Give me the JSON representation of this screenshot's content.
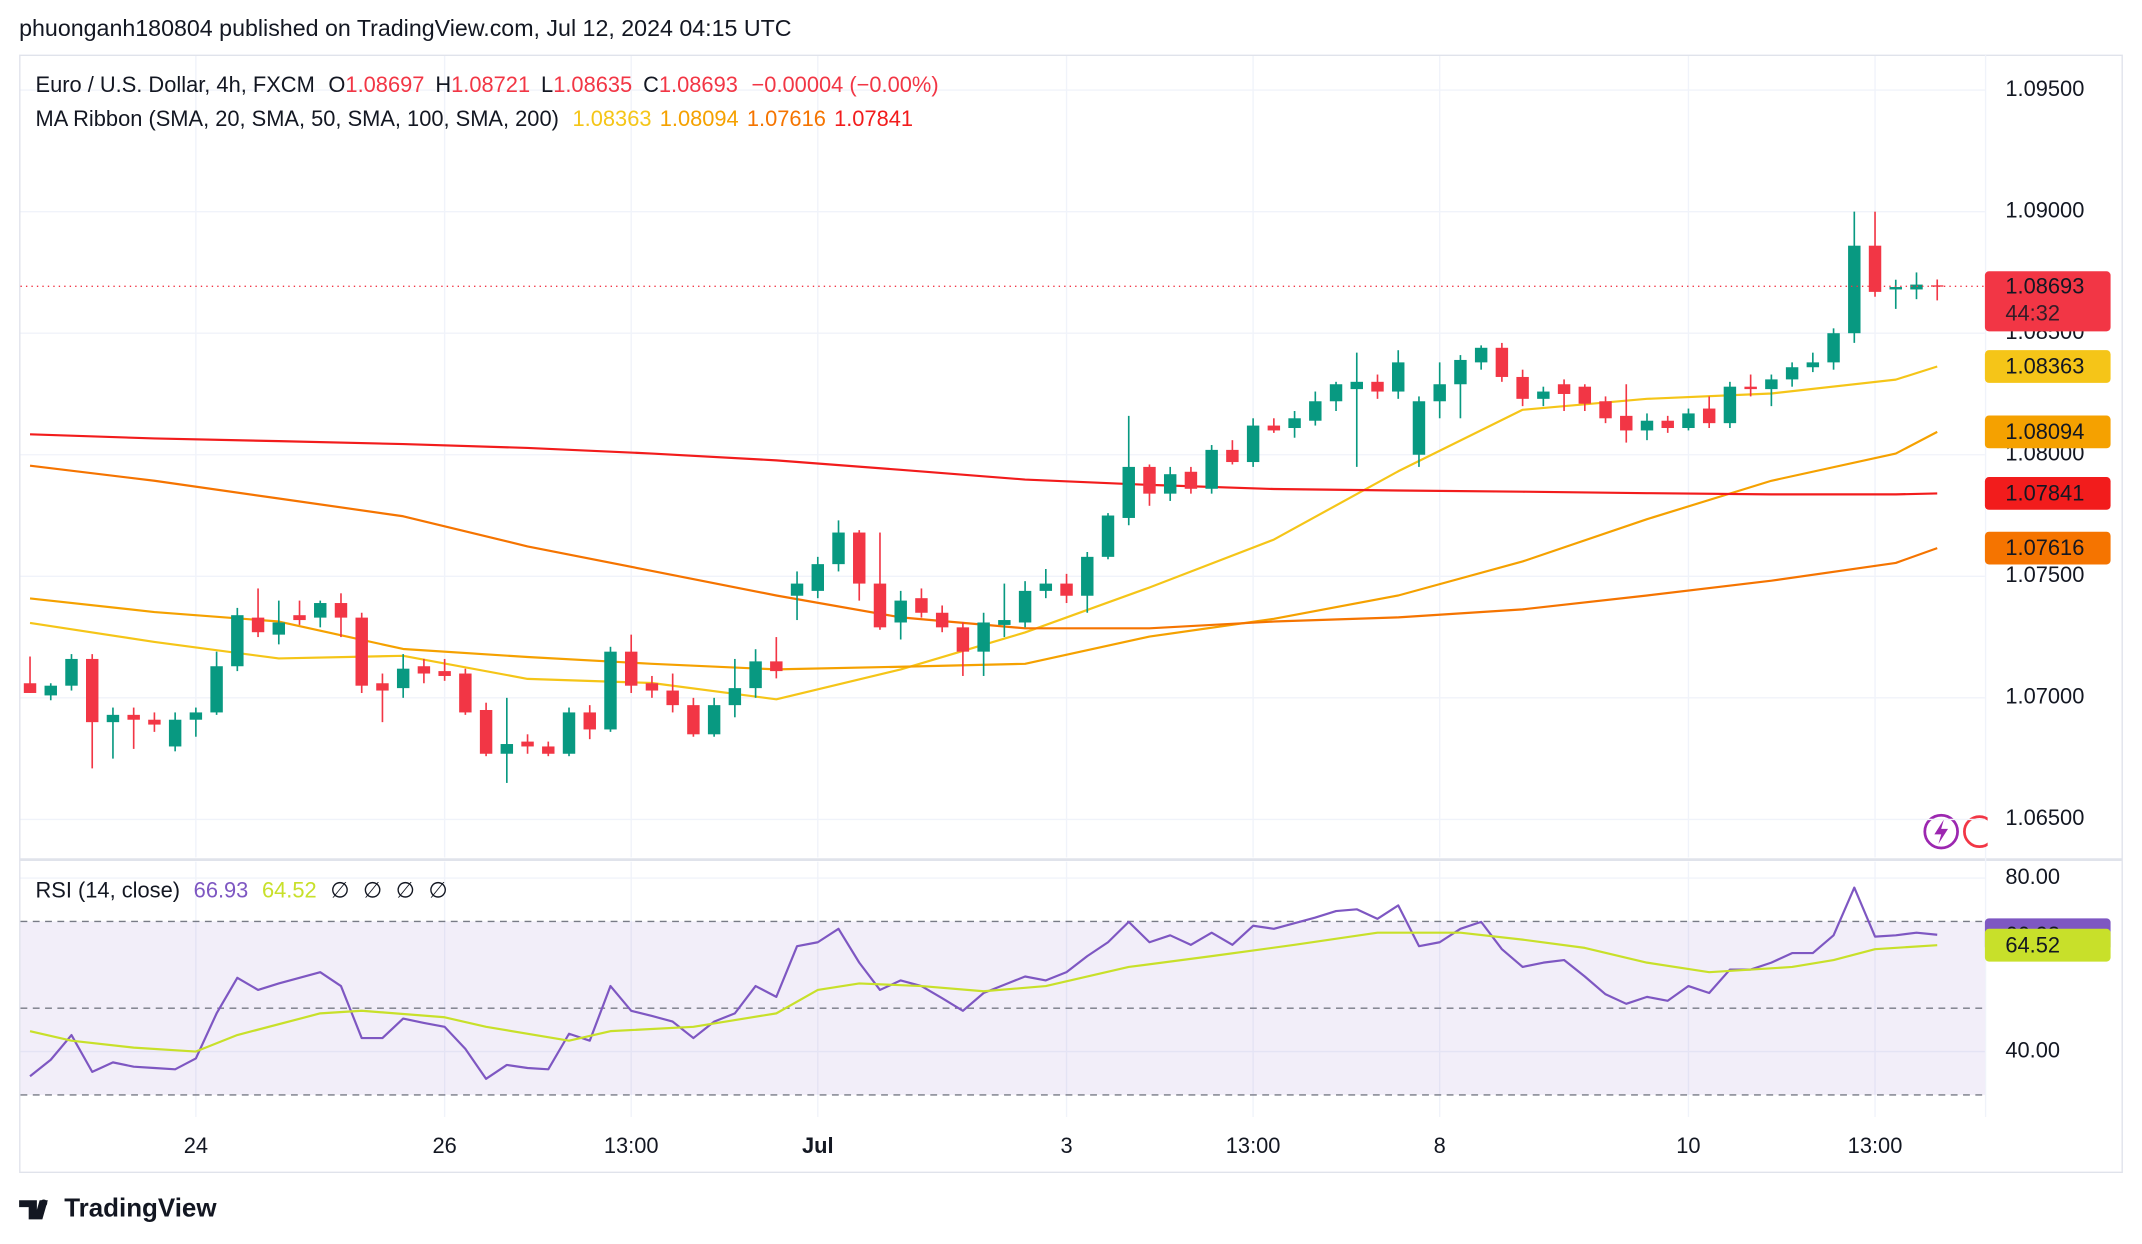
{
  "header": {
    "text": "phuonganh180804 published on TradingView.com, Jul 12, 2024 04:15 UTC"
  },
  "footer": {
    "brand": "TradingView"
  },
  "chart_data": [
    {
      "type": "candlestick",
      "title": "Euro / U.S. Dollar, 4h, FXCM",
      "ohlc_labels": [
        "O",
        "H",
        "L",
        "C"
      ],
      "change": "−0.00004 (−0.00%)",
      "countdown": "44:32",
      "open": [
        1.0706,
        1.0701,
        1.0705,
        1.0716,
        1.069,
        1.0693,
        1.0691,
        1.068,
        1.0691,
        1.0694,
        1.0713,
        1.0733,
        1.0726,
        1.0734,
        1.0733,
        1.0739,
        1.0733,
        1.0706,
        1.0704,
        1.0713,
        1.0711,
        1.071,
        1.0695,
        1.0677,
        1.0682,
        1.068,
        1.0677,
        1.0694,
        1.0687,
        1.0719,
        1.0706,
        1.0703,
        1.0697,
        1.0685,
        1.0697,
        1.0704,
        1.0715,
        1.0742,
        1.0744,
        1.0755,
        1.0768,
        1.0747,
        1.0731,
        1.0741,
        1.0735,
        1.0729,
        1.0719,
        1.073,
        1.0731,
        1.0744,
        1.0747,
        1.0742,
        1.0758,
        1.0774,
        1.0795,
        1.0784,
        1.0793,
        1.0786,
        1.0802,
        1.0797,
        1.0812,
        1.0811,
        1.0814,
        1.0822,
        1.0827,
        1.083,
        1.0826,
        1.08,
        1.0822,
        1.0829,
        1.0838,
        1.0844,
        1.0832,
        1.0823,
        1.0829,
        1.0828,
        1.0822,
        1.0816,
        1.081,
        1.0814,
        1.0811,
        1.0819,
        1.0813,
        1.0828,
        1.0827,
        1.0831,
        1.0836,
        1.0838,
        1.085,
        1.0886,
        1.0868,
        1.0868,
        1.08697
      ],
      "high": [
        1.0717,
        1.0706,
        1.0718,
        1.0718,
        1.0696,
        1.0696,
        1.0694,
        1.0694,
        1.0696,
        1.0719,
        1.0737,
        1.0745,
        1.074,
        1.074,
        1.074,
        1.0743,
        1.0735,
        1.071,
        1.0718,
        1.0716,
        1.0716,
        1.0712,
        1.0698,
        1.07,
        1.0685,
        1.0682,
        1.0696,
        1.0697,
        1.0721,
        1.0726,
        1.0709,
        1.071,
        1.07,
        1.07,
        1.0716,
        1.072,
        1.0725,
        1.0752,
        1.0758,
        1.0773,
        1.0769,
        1.0768,
        1.0744,
        1.0745,
        1.0738,
        1.0731,
        1.0735,
        1.0747,
        1.0748,
        1.0753,
        1.0751,
        1.076,
        1.0776,
        1.0816,
        1.0796,
        1.0795,
        1.0795,
        1.0804,
        1.0806,
        1.0815,
        1.0815,
        1.0818,
        1.0826,
        1.083,
        1.0842,
        1.0833,
        1.0843,
        1.0824,
        1.0838,
        1.0841,
        1.0845,
        1.0846,
        1.0835,
        1.0828,
        1.0831,
        1.0829,
        1.0824,
        1.0829,
        1.0817,
        1.0816,
        1.0819,
        1.0824,
        1.083,
        1.0833,
        1.0833,
        1.0838,
        1.0842,
        1.0852,
        1.09,
        1.09,
        1.0872,
        1.0875,
        1.08721
      ],
      "low": [
        1.0702,
        1.0699,
        1.0703,
        1.0671,
        1.0675,
        1.0679,
        1.0686,
        1.0678,
        1.0684,
        1.0693,
        1.0711,
        1.0725,
        1.0722,
        1.073,
        1.0729,
        1.0725,
        1.0702,
        1.069,
        1.07,
        1.0706,
        1.0707,
        1.0693,
        1.0676,
        1.0665,
        1.0677,
        1.0676,
        1.0676,
        1.0683,
        1.0686,
        1.0702,
        1.07,
        1.0694,
        1.0684,
        1.0684,
        1.0692,
        1.07,
        1.0708,
        1.0732,
        1.0741,
        1.0752,
        1.074,
        1.0728,
        1.0724,
        1.0733,
        1.0727,
        1.0709,
        1.0709,
        1.0725,
        1.0729,
        1.0741,
        1.0739,
        1.0735,
        1.0757,
        1.0771,
        1.0779,
        1.0781,
        1.0784,
        1.0784,
        1.0796,
        1.0795,
        1.0809,
        1.0807,
        1.0812,
        1.0818,
        1.0795,
        1.0823,
        1.0823,
        1.0795,
        1.0815,
        1.0815,
        1.0835,
        1.083,
        1.082,
        1.082,
        1.0818,
        1.0818,
        1.0813,
        1.0805,
        1.0806,
        1.0809,
        1.081,
        1.0811,
        1.0811,
        1.0824,
        1.082,
        1.0828,
        1.0834,
        1.0835,
        1.0846,
        1.0865,
        1.086,
        1.0864,
        1.08635
      ],
      "close": [
        1.0702,
        1.0705,
        1.0716,
        1.069,
        1.0693,
        1.0691,
        1.0689,
        1.0691,
        1.0694,
        1.0713,
        1.0734,
        1.0727,
        1.0731,
        1.0732,
        1.0739,
        1.0733,
        1.0705,
        1.0703,
        1.0712,
        1.071,
        1.0709,
        1.0694,
        1.0677,
        1.0681,
        1.068,
        1.0677,
        1.0694,
        1.0687,
        1.0719,
        1.0705,
        1.0703,
        1.0697,
        1.0685,
        1.0697,
        1.0704,
        1.0715,
        1.0711,
        1.0747,
        1.0755,
        1.0768,
        1.0747,
        1.0729,
        1.074,
        1.0735,
        1.0729,
        1.0719,
        1.0731,
        1.0732,
        1.0744,
        1.0747,
        1.0742,
        1.0758,
        1.0775,
        1.0795,
        1.0784,
        1.0792,
        1.0786,
        1.0802,
        1.0797,
        1.0812,
        1.081,
        1.0815,
        1.0822,
        1.0829,
        1.083,
        1.0826,
        1.0838,
        1.0822,
        1.0829,
        1.0839,
        1.0844,
        1.0832,
        1.0823,
        1.0826,
        1.0825,
        1.0821,
        1.0815,
        1.081,
        1.0814,
        1.0811,
        1.0817,
        1.0813,
        1.0828,
        1.0827,
        1.0831,
        1.0836,
        1.0838,
        1.085,
        1.0886,
        1.0867,
        1.0869,
        1.087,
        1.08693
      ],
      "up_color": "#089981",
      "down_color": "#f23645",
      "ylim": [
        1.06343,
        1.09646
      ],
      "yticks": [
        {
          "value": 1.065,
          "label": "1.06500"
        },
        {
          "value": 1.07,
          "label": "1.07000"
        },
        {
          "value": 1.075,
          "label": "1.07500"
        },
        {
          "value": 1.08,
          "label": "1.08000"
        },
        {
          "value": 1.085,
          "label": "1.08500"
        },
        {
          "value": 1.09,
          "label": "1.09000"
        },
        {
          "value": 1.095,
          "label": "1.09500"
        }
      ],
      "xlim": [
        -0.46,
        94.3
      ],
      "xticks": [
        {
          "value": 8,
          "label": "24"
        },
        {
          "value": 20,
          "label": "26"
        },
        {
          "value": 29,
          "label": "13:00"
        },
        {
          "value": 38,
          "label": "Jul"
        },
        {
          "value": 50,
          "label": "3"
        },
        {
          "value": 59,
          "label": "13:00"
        },
        {
          "value": 68,
          "label": "8"
        },
        {
          "value": 80,
          "label": "10"
        },
        {
          "value": 89,
          "label": "13:00"
        }
      ],
      "grid": true,
      "ma_ribbon": {
        "title": "MA Ribbon (SMA, 20, SMA, 50, SMA, 100, SMA, 200)",
        "x": [
          0,
          6,
          12,
          18,
          24,
          30,
          36,
          42,
          48,
          54,
          60,
          66,
          72,
          78,
          84,
          90,
          92
        ],
        "series": [
          {
            "color": "#f5c518",
            "values": [
              1.07308,
              1.0723,
              1.07162,
              1.07173,
              1.07078,
              1.07061,
              1.06994,
              1.07117,
              1.07269,
              1.07454,
              1.07651,
              1.07932,
              1.08185,
              1.0823,
              1.08252,
              1.08309,
              1.08363
            ]
          },
          {
            "color": "#f5a100",
            "values": [
              1.07409,
              1.07353,
              1.07314,
              1.07201,
              1.07168,
              1.0714,
              1.07117,
              1.07128,
              1.0714,
              1.07252,
              1.07325,
              1.07421,
              1.07561,
              1.07735,
              1.07893,
              1.08005,
              1.08094
            ]
          },
          {
            "color": "#f57400",
            "values": [
              1.07955,
              1.07893,
              1.0782,
              1.07747,
              1.07623,
              1.07522,
              1.07421,
              1.07331,
              1.07286,
              1.07286,
              1.07314,
              1.07331,
              1.07364,
              1.07421,
              1.07482,
              1.07555,
              1.07616
            ]
          },
          {
            "color": "#f21c1c",
            "values": [
              1.08084,
              1.08067,
              1.08056,
              1.08044,
              1.08028,
              1.08005,
              1.07977,
              1.07938,
              1.07898,
              1.07876,
              1.07859,
              1.07853,
              1.07848,
              1.07842,
              1.07837,
              1.07837,
              1.07841
            ]
          }
        ]
      }
    },
    {
      "type": "line",
      "title": "RSI (14, close)",
      "na_labels": [
        "∅",
        "∅",
        "∅",
        "∅"
      ],
      "ylim": [
        24.9,
        84.1
      ],
      "yticks": [
        {
          "value": 40,
          "label": "40.00"
        },
        {
          "value": 80,
          "label": "80.00"
        }
      ],
      "levels": [
        70,
        50,
        30
      ],
      "band_color": "#7e57c2",
      "series": [
        {
          "color": "#7e57c2",
          "values": [
            34.3,
            38.1,
            43.8,
            35.3,
            37.5,
            36.5,
            36.2,
            35.9,
            38.4,
            48.8,
            57.0,
            54.2,
            55.7,
            57.0,
            58.3,
            55.1,
            43.1,
            43.1,
            47.6,
            46.6,
            45.7,
            40.6,
            33.7,
            36.9,
            36.2,
            35.9,
            44.1,
            42.5,
            55.1,
            49.4,
            48.2,
            46.9,
            43.1,
            46.9,
            48.8,
            55.1,
            52.6,
            64.3,
            65.2,
            68.3,
            60.5,
            54.2,
            56.4,
            55.1,
            52.3,
            49.4,
            53.5,
            55.4,
            57.3,
            56.4,
            58.3,
            62.0,
            65.2,
            69.9,
            65.2,
            66.8,
            64.6,
            67.4,
            64.6,
            69.0,
            68.3,
            69.6,
            70.9,
            72.4,
            72.8,
            70.6,
            73.7,
            64.3,
            65.2,
            68.3,
            69.9,
            63.6,
            59.5,
            60.5,
            61.1,
            57.3,
            53.2,
            51.0,
            52.6,
            51.7,
            55.1,
            53.5,
            58.9,
            58.9,
            60.5,
            62.7,
            62.7,
            66.8,
            77.8,
            66.5,
            66.8,
            67.4,
            66.93
          ]
        },
        {
          "color": "#c8e02a",
          "x": [
            0,
            2,
            5,
            8,
            10,
            14,
            16,
            20,
            22,
            26,
            28,
            32,
            36,
            38,
            40,
            43,
            46,
            49,
            53,
            57,
            61,
            65,
            69,
            72,
            75,
            78,
            81,
            85,
            87,
            89,
            92
          ],
          "values": [
            44.7,
            42.5,
            40.9,
            40.0,
            43.8,
            48.8,
            49.4,
            47.9,
            45.7,
            42.5,
            44.7,
            45.7,
            48.8,
            54.2,
            55.7,
            55.1,
            53.9,
            55.1,
            59.5,
            62.0,
            64.6,
            67.4,
            67.4,
            65.8,
            63.9,
            60.5,
            58.3,
            59.5,
            61.1,
            63.6,
            64.52
          ]
        }
      ]
    }
  ]
}
